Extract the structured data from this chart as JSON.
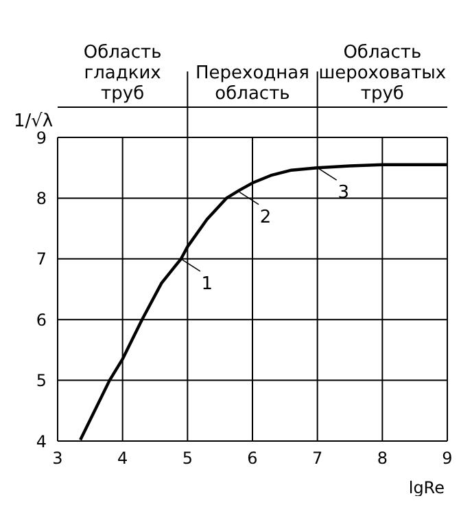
{
  "chart_data": {
    "type": "line",
    "xlabel": "lgRe",
    "ylabel": "1/√λ",
    "x": [
      3.35,
      3.8,
      4.0,
      4.3,
      4.6,
      4.9,
      5.0,
      5.3,
      5.6,
      5.8,
      6.0,
      6.3,
      6.6,
      7.0,
      7.5,
      8.0,
      9.0
    ],
    "series": [
      {
        "color": "#000000",
        "values": [
          4.02,
          5.0,
          5.35,
          6.0,
          6.6,
          7.0,
          7.2,
          7.65,
          8.0,
          8.13,
          8.25,
          8.38,
          8.46,
          8.5,
          8.53,
          8.55,
          8.55
        ]
      }
    ],
    "xlim": [
      3,
      9
    ],
    "ylim": [
      4,
      9
    ],
    "xticks": [
      3,
      4,
      5,
      6,
      7,
      8,
      9
    ],
    "yticks": [
      4,
      5,
      6,
      7,
      8,
      9
    ],
    "grid": true,
    "marker": "none",
    "line_style": "solid",
    "annotations": [
      "Область гладких труб",
      "Переходная область",
      "Область шероховатых труб",
      {
        "text": "1",
        "x": 4.9,
        "y": 7.0
      },
      {
        "text": "2",
        "x": 5.8,
        "y": 8.1
      },
      {
        "text": "3",
        "x": 7.0,
        "y": 8.5
      }
    ]
  }
}
